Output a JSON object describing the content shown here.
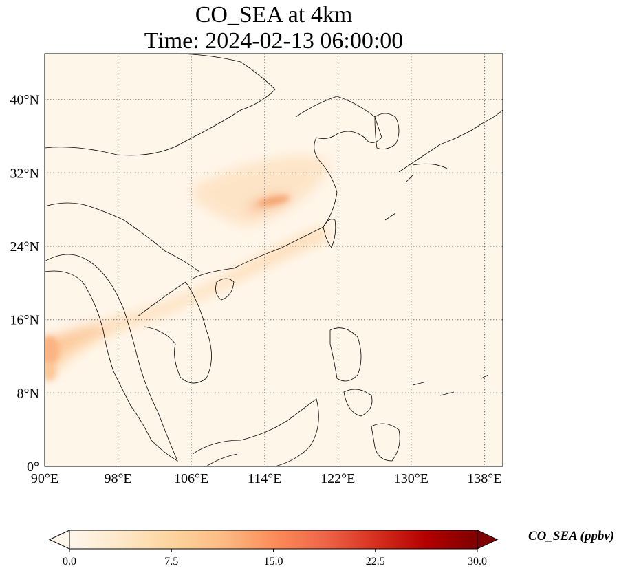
{
  "title_line1": "CO_SEA at 4km",
  "title_line2": "Time: 2024-02-13 06:00:00",
  "map": {
    "lon_range": [
      90,
      140
    ],
    "lat_range": [
      0,
      45
    ],
    "lon_ticks": [
      90,
      98,
      106,
      114,
      122,
      130,
      138
    ],
    "lon_tick_labels": [
      "90°E",
      "98°E",
      "106°E",
      "114°E",
      "122°E",
      "130°E",
      "138°E"
    ],
    "lat_ticks": [
      0,
      8,
      16,
      24,
      32,
      40
    ],
    "lat_tick_labels": [
      "0°",
      "8°N",
      "16°N",
      "24°N",
      "32°N",
      "40°N"
    ],
    "gridlines": "dotted",
    "colormap": "OrRd",
    "colors": {
      "low": "#fff7ec",
      "mid": "#fdbb84",
      "high": "#7f0000"
    }
  },
  "colorbar": {
    "label": "CO_SEA (ppbv)",
    "range": [
      0.0,
      30.0
    ],
    "ticks": [
      0.0,
      7.5,
      15.0,
      22.5,
      30.0
    ],
    "tick_labels": [
      "0.0",
      "7.5",
      "15.0",
      "22.5",
      "30.0"
    ],
    "extend": "both",
    "orientation": "horizontal"
  }
}
